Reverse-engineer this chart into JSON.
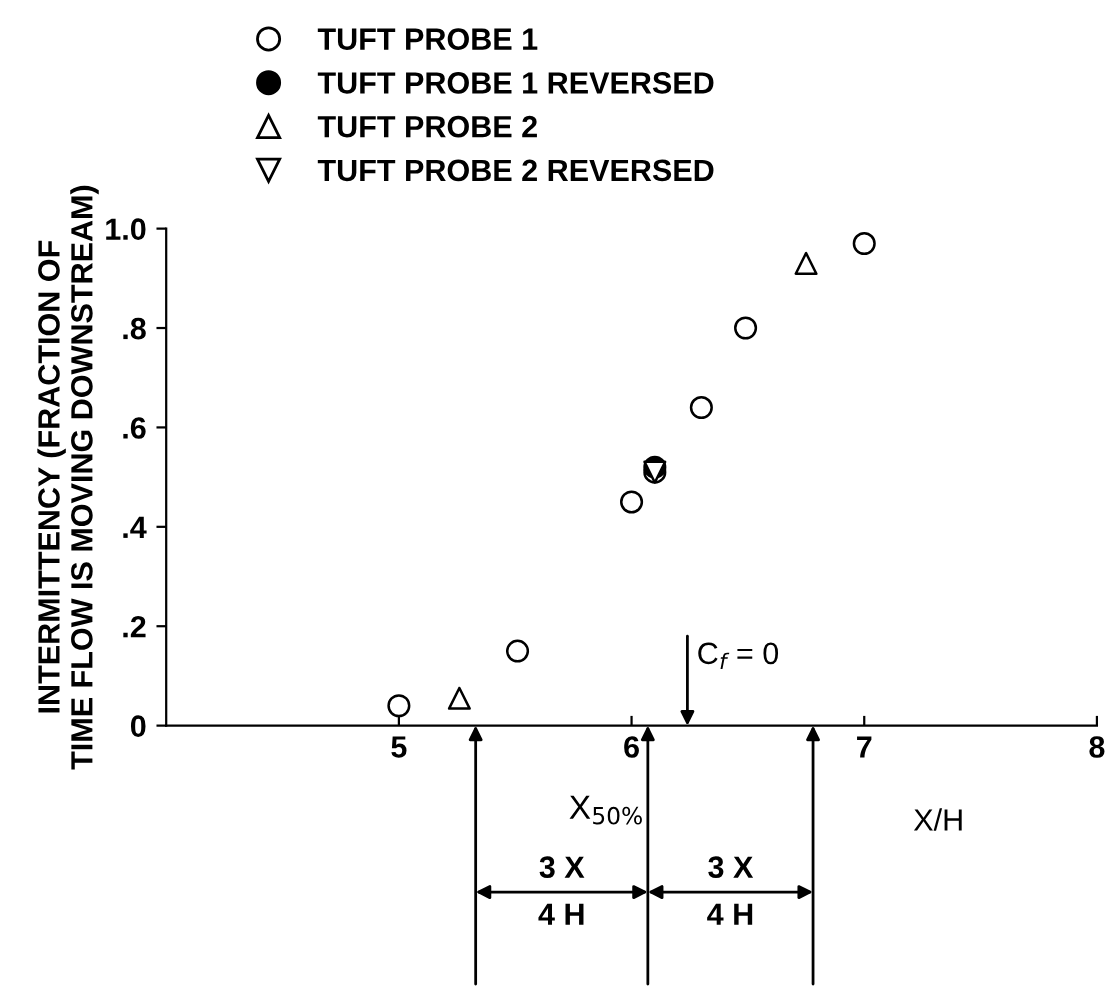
{
  "chart_data": {
    "type": "scatter",
    "ylabel": "INTERMITTENCY (FRACTION OF\nTIME FLOW IS MOVING DOWNSTREAM)",
    "xlabel": "X/H",
    "xlim": [
      4,
      8
    ],
    "xticks": [
      5,
      6,
      7,
      8
    ],
    "ylim": [
      0,
      1.0
    ],
    "yticks": [
      {
        "value": 0,
        "label": "0"
      },
      {
        "value": 0.2,
        "label": ".2"
      },
      {
        "value": 0.4,
        "label": ".4"
      },
      {
        "value": 0.6,
        "label": ".6"
      },
      {
        "value": 0.8,
        "label": ".8"
      },
      {
        "value": 1.0,
        "label": "1.0"
      }
    ],
    "series": [
      {
        "name": "TUFT PROBE 1",
        "color": "#ffffff",
        "marker": "circle",
        "x": [
          5.0,
          5.51,
          6.0,
          6.1,
          6.3,
          6.49,
          7.0
        ],
        "values": [
          0.04,
          0.15,
          0.45,
          0.51,
          0.64,
          0.8,
          0.97
        ]
      },
      {
        "name": "TUFT PROBE 1 REVERSED",
        "color": "#000000",
        "marker": "circle",
        "x": [
          6.1
        ],
        "values": [
          0.52
        ]
      },
      {
        "name": "TUFT PROBE 2",
        "color": "#ffffff",
        "marker": "triangle",
        "x": [
          5.26,
          6.75
        ],
        "values": [
          0.055,
          0.93
        ]
      },
      {
        "name": "TUFT PROBE 2 REVERSED",
        "color": "#ffffff",
        "marker": "triangle_down",
        "x": [
          6.1
        ],
        "values": [
          0.51
        ]
      }
    ],
    "annotations": [
      "C$_{f}$ = 0",
      "X$_{50%}$",
      "3 X",
      "4 H",
      "3 X",
      "4 H"
    ],
    "legend": "top left",
    "grid": false
  }
}
